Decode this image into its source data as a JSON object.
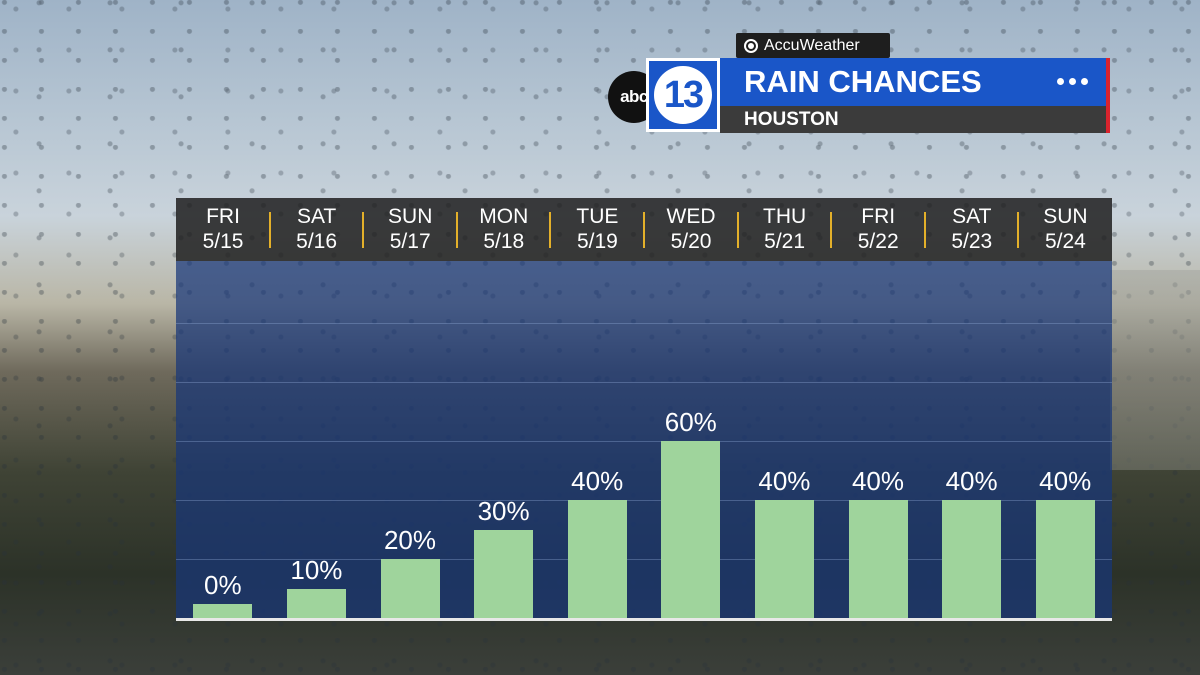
{
  "branding": {
    "provider": "AccuWeather",
    "station_logo_small": "abc",
    "station_logo_number": "13"
  },
  "header": {
    "title": "RAIN CHANCES",
    "location": "HOUSTON",
    "menu_icon": "more-dots-icon"
  },
  "colors": {
    "brand_blue": "#1a56c8",
    "accent_red": "#d9232d",
    "separator_gold": "#e3b02a",
    "bar_green": "#9fd49c"
  },
  "chart_data": {
    "type": "bar",
    "categories": [
      "FRI 5/15",
      "SAT 5/16",
      "SUN 5/17",
      "MON 5/18",
      "TUE 5/19",
      "WED 5/20",
      "THU 5/21",
      "FRI 5/22",
      "SAT 5/23",
      "SUN 5/24"
    ],
    "days": [
      {
        "dow": "FRI",
        "date": "5/15"
      },
      {
        "dow": "SAT",
        "date": "5/16"
      },
      {
        "dow": "SUN",
        "date": "5/17"
      },
      {
        "dow": "MON",
        "date": "5/18"
      },
      {
        "dow": "TUE",
        "date": "5/19"
      },
      {
        "dow": "WED",
        "date": "5/20"
      },
      {
        "dow": "THU",
        "date": "5/21"
      },
      {
        "dow": "FRI",
        "date": "5/22"
      },
      {
        "dow": "SAT",
        "date": "5/23"
      },
      {
        "dow": "SUN",
        "date": "5/24"
      }
    ],
    "values": [
      0,
      10,
      20,
      30,
      40,
      60,
      40,
      40,
      40,
      40
    ],
    "labels": [
      "0%",
      "10%",
      "20%",
      "30%",
      "40%",
      "60%",
      "40%",
      "40%",
      "40%",
      "40%"
    ],
    "unit": "%",
    "ylim": [
      0,
      100
    ],
    "grid": true
  }
}
